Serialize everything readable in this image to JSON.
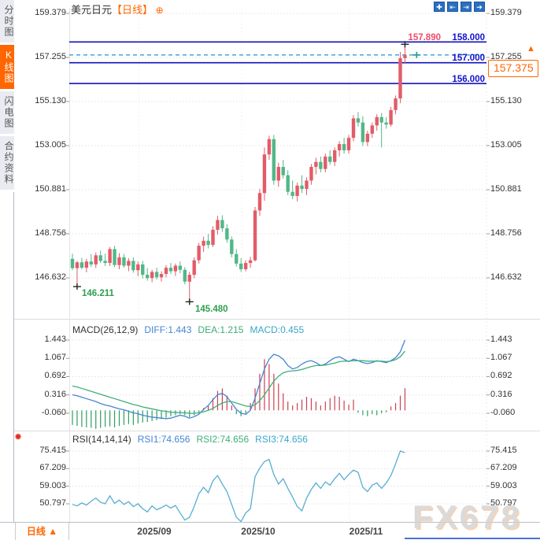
{
  "app": {
    "watermark": "FX678"
  },
  "sidebar": {
    "tabs": [
      {
        "label": "分时图",
        "active": false
      },
      {
        "label": "K线图",
        "active": true
      },
      {
        "label": "闪电图",
        "active": false
      },
      {
        "label": "合约资料",
        "active": false
      }
    ]
  },
  "header": {
    "symbol": "美元日元",
    "period_tag": "【日线】",
    "plus_glyph": "⊕"
  },
  "toolbar": {
    "icons": [
      {
        "name": "crosshair-icon",
        "glyph": "✚"
      },
      {
        "name": "zoom-x-range-icon",
        "glyph": "⇤"
      },
      {
        "name": "shift-right-icon",
        "glyph": "⇥"
      },
      {
        "name": "exit-chart-icon",
        "glyph": "➔"
      }
    ]
  },
  "colors": {
    "up": "#e25c68",
    "down": "#52b788",
    "level_line": "#1212bb",
    "level_label": "#1212cc",
    "high_label": "#ef4a66",
    "current_dashed": "#3a9bd5",
    "accent_orange": "#ff6600",
    "diff_line": "#4585d5",
    "dea_line": "#3fae7a",
    "rsi_line": "#58aed0",
    "hist_pos": "#cc4050",
    "hist_neg": "#2f9e60",
    "annotation_green": "#2f9e4f"
  },
  "axes": {
    "price": {
      "labels": [
        "159.379",
        "157.255",
        "155.130",
        "153.005",
        "150.881",
        "148.756",
        "146.632"
      ],
      "values": [
        159.379,
        157.255,
        155.13,
        153.005,
        150.881,
        148.756,
        146.632
      ]
    },
    "macd": {
      "labels": [
        "1.443",
        "1.067",
        "0.692",
        "0.316",
        "-0.060"
      ],
      "values": [
        1.443,
        1.067,
        0.692,
        0.316,
        -0.06
      ]
    },
    "rsi": {
      "labels": [
        "75.415",
        "67.209",
        "59.003",
        "50.797"
      ],
      "values": [
        75.415,
        67.209,
        59.003,
        50.797
      ]
    }
  },
  "levels": {
    "lines": [
      158.0,
      157.0,
      156.0
    ],
    "labels": [
      "158.000",
      "157.000",
      "156.000"
    ],
    "high_label": "157.890",
    "high_value": 157.89,
    "current_label": "157.375",
    "current_value": 157.375
  },
  "annotations": [
    {
      "text": "146.211",
      "value": 146.211,
      "index": 1
    },
    {
      "text": "145.480",
      "value": 145.48,
      "index": 25
    }
  ],
  "macd_header": {
    "name": "MACD(26,12,9)",
    "diff": "DIFF:1.443",
    "dea": "DEA:1.215",
    "macd": "MACD:0.455"
  },
  "rsi_header": {
    "name": "RSI(14,14,14)",
    "rsi1": "RSI1:74.656",
    "rsi2": "RSI2:74.656",
    "rsi3": "RSI3:74.656"
  },
  "x_axis": {
    "labels": [
      "2025/09",
      "2025/10",
      "2025/11"
    ],
    "ticks": [
      176,
      307,
      444
    ]
  },
  "bottom_bar": {
    "period": "日线",
    "arrow": "▲"
  },
  "chart_data": [
    {
      "type": "candlestick",
      "title": "美元日元 日线 (USD/JPY daily)",
      "ylim": [
        145.0,
        159.379
      ],
      "grid": true,
      "up_color_note": "red = up (CN convention), green = down",
      "ohlc": [
        [
          147.55,
          147.8,
          147.0,
          147.1
        ],
        [
          147.1,
          147.45,
          146.211,
          147.38
        ],
        [
          147.38,
          147.6,
          147.05,
          147.12
        ],
        [
          147.12,
          147.55,
          146.9,
          147.42
        ],
        [
          147.42,
          147.78,
          147.15,
          147.28
        ],
        [
          147.28,
          147.85,
          147.1,
          147.72
        ],
        [
          147.72,
          147.95,
          147.35,
          147.45
        ],
        [
          147.45,
          147.8,
          147.2,
          147.35
        ],
        [
          147.35,
          148.12,
          147.2,
          148.02
        ],
        [
          148.02,
          148.18,
          147.15,
          147.25
        ],
        [
          147.25,
          147.82,
          147.05,
          147.62
        ],
        [
          147.62,
          147.78,
          147.12,
          147.22
        ],
        [
          147.22,
          147.58,
          146.95,
          147.45
        ],
        [
          147.45,
          147.62,
          146.88,
          147.0
        ],
        [
          147.0,
          147.42,
          146.72,
          147.28
        ],
        [
          147.28,
          147.45,
          146.6,
          146.78
        ],
        [
          146.78,
          147.1,
          146.5,
          146.62
        ],
        [
          146.62,
          147.02,
          146.42,
          146.92
        ],
        [
          146.92,
          147.12,
          146.55,
          146.66
        ],
        [
          146.66,
          146.95,
          146.45,
          146.82
        ],
        [
          146.82,
          147.25,
          146.65,
          147.12
        ],
        [
          147.12,
          147.35,
          146.82,
          146.95
        ],
        [
          146.95,
          147.32,
          146.72,
          147.22
        ],
        [
          147.22,
          147.42,
          146.85,
          147.02
        ],
        [
          147.02,
          147.15,
          146.32,
          146.45
        ],
        [
          146.45,
          146.92,
          145.48,
          146.78
        ],
        [
          146.78,
          147.62,
          146.62,
          147.48
        ],
        [
          147.48,
          148.32,
          147.32,
          148.18
        ],
        [
          148.18,
          148.62,
          147.88,
          148.42
        ],
        [
          148.42,
          148.75,
          148.05,
          148.22
        ],
        [
          148.22,
          149.12,
          148.12,
          148.95
        ],
        [
          148.95,
          149.62,
          148.72,
          149.42
        ],
        [
          149.42,
          149.65,
          148.85,
          149.02
        ],
        [
          149.02,
          149.22,
          148.32,
          148.48
        ],
        [
          148.48,
          148.62,
          147.62,
          147.78
        ],
        [
          147.78,
          148.02,
          147.18,
          147.32
        ],
        [
          147.32,
          147.58,
          146.92,
          147.05
        ],
        [
          147.05,
          147.48,
          146.95,
          147.35
        ],
        [
          147.35,
          147.65,
          147.12,
          147.48
        ],
        [
          147.48,
          150.05,
          147.42,
          149.88
        ],
        [
          149.88,
          150.92,
          149.62,
          150.72
        ],
        [
          150.72,
          152.92,
          150.35,
          152.58
        ],
        [
          152.58,
          153.48,
          152.32,
          153.32
        ],
        [
          153.32,
          153.52,
          151.12,
          151.32
        ],
        [
          151.32,
          152.18,
          151.02,
          151.98
        ],
        [
          151.98,
          152.32,
          151.42,
          151.58
        ],
        [
          151.58,
          151.82,
          150.62,
          150.78
        ],
        [
          150.78,
          151.32,
          150.42,
          150.58
        ],
        [
          150.58,
          151.22,
          150.32,
          151.08
        ],
        [
          151.08,
          151.58,
          150.72,
          150.92
        ],
        [
          150.92,
          151.48,
          150.62,
          151.32
        ],
        [
          151.32,
          152.12,
          151.12,
          151.98
        ],
        [
          151.98,
          152.42,
          151.62,
          152.22
        ],
        [
          152.22,
          152.48,
          151.72,
          151.88
        ],
        [
          151.88,
          152.62,
          151.72,
          152.48
        ],
        [
          152.48,
          152.78,
          152.08,
          152.22
        ],
        [
          152.22,
          152.92,
          152.02,
          152.78
        ],
        [
          152.78,
          153.22,
          152.48,
          153.08
        ],
        [
          153.08,
          153.38,
          152.62,
          152.78
        ],
        [
          152.78,
          153.52,
          152.62,
          153.38
        ],
        [
          153.38,
          154.48,
          153.22,
          154.32
        ],
        [
          154.32,
          154.62,
          153.92,
          154.12
        ],
        [
          154.12,
          154.42,
          152.98,
          153.18
        ],
        [
          153.18,
          153.72,
          152.98,
          153.58
        ],
        [
          153.58,
          154.12,
          153.38,
          153.98
        ],
        [
          153.98,
          154.52,
          153.72,
          154.38
        ],
        [
          154.38,
          154.58,
          152.92,
          154.12
        ],
        [
          154.12,
          154.38,
          153.82,
          154.02
        ],
        [
          154.02,
          154.88,
          153.92,
          154.72
        ],
        [
          154.72,
          155.42,
          154.52,
          155.28
        ],
        [
          155.28,
          157.52,
          155.05,
          157.22
        ],
        [
          157.22,
          157.89,
          156.95,
          157.375
        ]
      ],
      "high_marker": {
        "index": 71,
        "value": 157.89
      },
      "current_tick": {
        "value": 157.375
      }
    },
    {
      "type": "bar",
      "title": "MACD(26,12,9)",
      "ylim": [
        -0.45,
        1.6
      ],
      "hist": [
        -0.3,
        -0.32,
        -0.34,
        -0.35,
        -0.36,
        -0.38,
        -0.36,
        -0.34,
        -0.33,
        -0.35,
        -0.32,
        -0.3,
        -0.28,
        -0.3,
        -0.27,
        -0.25,
        -0.24,
        -0.22,
        -0.2,
        -0.18,
        -0.15,
        -0.12,
        -0.1,
        -0.08,
        -0.1,
        -0.14,
        -0.1,
        -0.06,
        0.05,
        0.1,
        0.25,
        0.4,
        0.45,
        0.3,
        0.1,
        -0.08,
        -0.12,
        -0.06,
        0.15,
        0.45,
        0.75,
        1.05,
        0.95,
        0.75,
        0.55,
        0.35,
        0.18,
        0.1,
        0.15,
        0.22,
        0.28,
        0.25,
        0.18,
        0.1,
        0.18,
        0.25,
        0.3,
        0.28,
        0.2,
        0.12,
        0.22,
        -0.05,
        -0.1,
        -0.12,
        -0.08,
        -0.1,
        -0.06,
        -0.04,
        0.08,
        0.15,
        0.3,
        0.455
      ],
      "series": [
        {
          "name": "DIFF",
          "values": [
            0.32,
            0.3,
            0.27,
            0.24,
            0.21,
            0.18,
            0.14,
            0.11,
            0.09,
            0.06,
            0.03,
            0.01,
            -0.02,
            -0.05,
            -0.07,
            -0.1,
            -0.12,
            -0.14,
            -0.15,
            -0.16,
            -0.17,
            -0.16,
            -0.13,
            -0.1,
            -0.12,
            -0.16,
            -0.13,
            -0.08,
            0.02,
            0.1,
            0.22,
            0.32,
            0.35,
            0.28,
            0.15,
            0.02,
            -0.06,
            -0.08,
            0.0,
            0.25,
            0.55,
            0.85,
            1.05,
            1.15,
            1.12,
            1.05,
            0.92,
            0.85,
            0.88,
            0.95,
            1.0,
            1.02,
            0.98,
            0.92,
            0.95,
            1.02,
            1.08,
            1.1,
            1.05,
            1.0,
            1.05,
            1.02,
            0.98,
            0.96,
            0.98,
            1.02,
            1.0,
            0.98,
            1.02,
            1.08,
            1.2,
            1.443
          ]
        },
        {
          "name": "DEA",
          "values": [
            0.5,
            0.48,
            0.45,
            0.42,
            0.39,
            0.36,
            0.33,
            0.3,
            0.27,
            0.24,
            0.21,
            0.18,
            0.15,
            0.12,
            0.1,
            0.07,
            0.05,
            0.03,
            0.01,
            -0.01,
            -0.02,
            -0.04,
            -0.04,
            -0.05,
            -0.05,
            -0.06,
            -0.06,
            -0.05,
            -0.03,
            0.0,
            0.04,
            0.1,
            0.15,
            0.18,
            0.18,
            0.15,
            0.12,
            0.09,
            0.08,
            0.11,
            0.2,
            0.32,
            0.46,
            0.6,
            0.7,
            0.77,
            0.8,
            0.81,
            0.82,
            0.84,
            0.87,
            0.9,
            0.92,
            0.92,
            0.93,
            0.95,
            0.97,
            1.0,
            1.01,
            1.01,
            1.02,
            1.02,
            1.02,
            1.01,
            1.01,
            1.01,
            1.01,
            1.0,
            1.01,
            1.04,
            1.1,
            1.215
          ]
        }
      ]
    },
    {
      "type": "line",
      "title": "RSI(14,14,14)",
      "ylim": [
        41,
        77
      ],
      "series": [
        {
          "name": "RSI1",
          "values": [
            50.5,
            49.8,
            51.2,
            50.2,
            52.0,
            53.5,
            51.5,
            50.8,
            54.5,
            51.0,
            52.5,
            50.5,
            51.8,
            49.5,
            50.8,
            48.5,
            47.0,
            49.8,
            48.0,
            49.0,
            50.2,
            48.8,
            50.0,
            46.5,
            43.2,
            44.5,
            49.5,
            55.5,
            58.5,
            56.0,
            61.5,
            64.0,
            60.0,
            56.5,
            50.5,
            44.5,
            42.5,
            46.5,
            48.5,
            63.5,
            67.5,
            70.5,
            71.5,
            64.5,
            60.0,
            62.5,
            58.0,
            54.0,
            49.5,
            47.5,
            53.5,
            57.5,
            60.5,
            58.0,
            61.0,
            59.5,
            62.5,
            65.0,
            62.0,
            64.5,
            66.5,
            65.5,
            58.5,
            56.5,
            59.5,
            60.5,
            58.0,
            60.5,
            64.0,
            69.5,
            75.415,
            74.656
          ]
        }
      ]
    }
  ]
}
